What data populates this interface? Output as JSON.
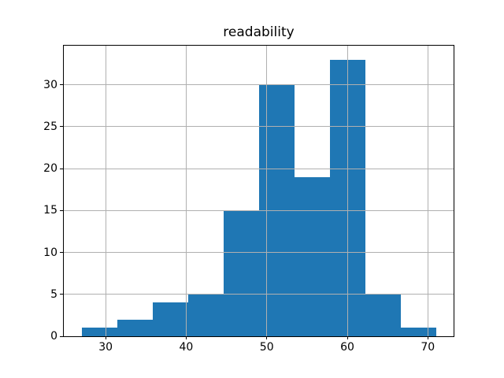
{
  "chart_data": {
    "type": "bar",
    "subtype": "histogram",
    "title": "readability",
    "xlabel": "",
    "ylabel": "",
    "bin_edges": [
      27.0,
      31.4,
      35.8,
      40.2,
      44.6,
      49.0,
      53.4,
      57.8,
      62.2,
      66.6,
      71.0
    ],
    "counts": [
      1,
      2,
      4,
      5,
      15,
      30,
      19,
      33,
      5,
      1
    ],
    "total_count": 115,
    "xticks": [
      30,
      40,
      50,
      60,
      70
    ],
    "yticks": [
      0,
      5,
      10,
      15,
      20,
      25,
      30
    ],
    "xlim": [
      24.8,
      73.2
    ],
    "ylim": [
      0,
      34.65
    ],
    "grid": true,
    "grid_above_bars": true,
    "legend": null,
    "colors": {
      "bar": "#1f77b4",
      "grid": "#b0b0b0",
      "spine": "#000000",
      "background": "#ffffff",
      "text": "#000000"
    }
  }
}
